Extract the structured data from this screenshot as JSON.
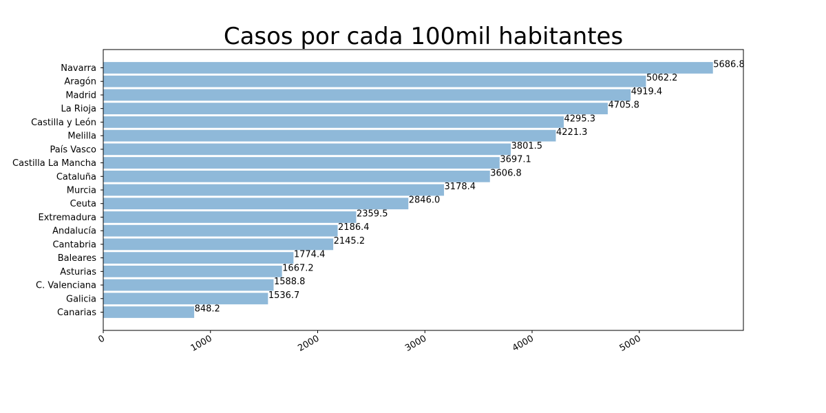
{
  "chart_data": {
    "type": "bar",
    "orientation": "horizontal",
    "title": "Casos por cada 100mil habitantes",
    "xlabel": "",
    "ylabel": "",
    "categories": [
      "Navarra",
      "Aragón",
      "Madrid",
      "La Rioja",
      "Castilla y León",
      "Melilla",
      "País Vasco",
      "Castilla La Mancha",
      "Cataluña",
      "Murcia",
      "Ceuta",
      "Extremadura",
      "Andalucía",
      "Cantabria",
      "Baleares",
      "Asturias",
      "C. Valenciana",
      "Galicia",
      "Canarias"
    ],
    "values": [
      5686.8,
      5062.2,
      4919.4,
      4705.8,
      4295.3,
      4221.3,
      3801.5,
      3697.1,
      3606.8,
      3178.4,
      2846.0,
      2359.5,
      2186.4,
      2145.2,
      1774.4,
      1667.2,
      1588.8,
      1536.7,
      848.2
    ],
    "value_labels": [
      "5686.8",
      "5062.2",
      "4919.4",
      "4705.8",
      "4295.3",
      "4221.3",
      "3801.5",
      "3697.1",
      "3606.8",
      "3178.4",
      "2846.0",
      "2359.5",
      "2186.4",
      "2145.2",
      "1774.4",
      "1667.2",
      "1588.8",
      "1536.7",
      "848.2"
    ],
    "xticks": [
      0,
      1000,
      2000,
      3000,
      4000,
      5000
    ],
    "xtick_labels": [
      "0",
      "1000",
      "2000",
      "3000",
      "4000",
      "5000"
    ],
    "xlim": [
      0,
      5971
    ],
    "bar_color": "#8fb9d9",
    "grid": false,
    "legend": "none"
  }
}
